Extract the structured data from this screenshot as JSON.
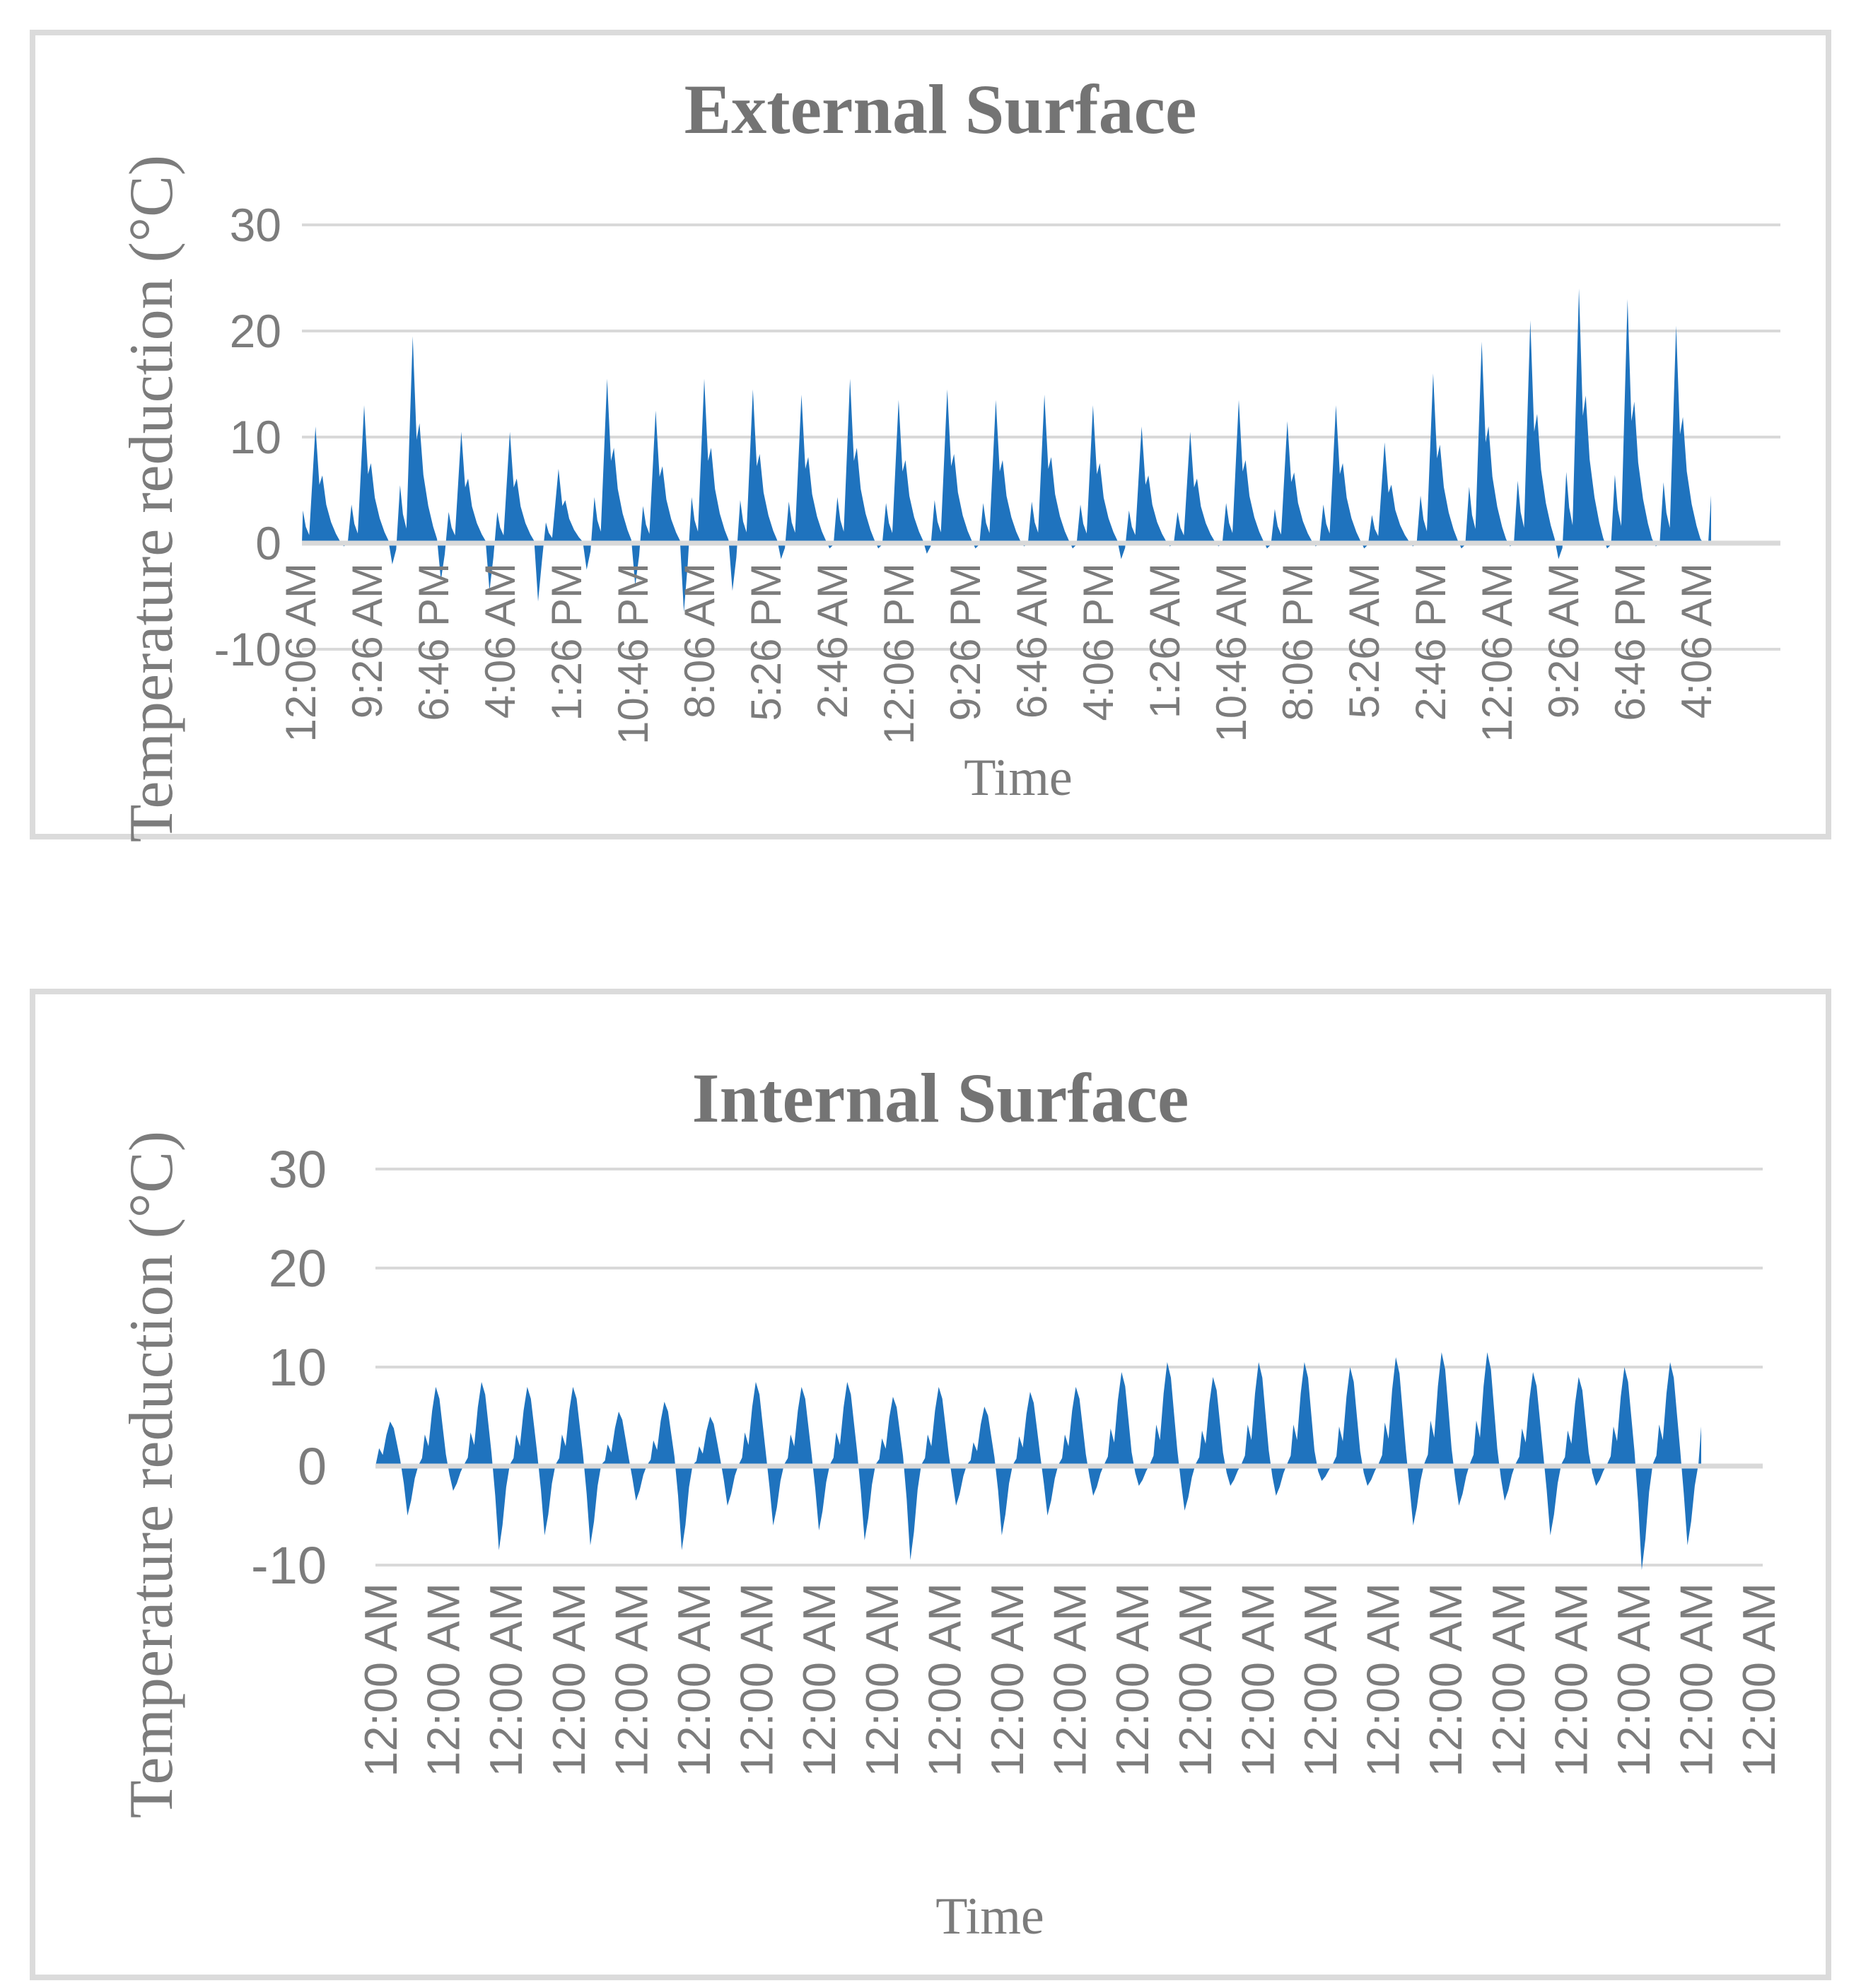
{
  "page": {
    "background": "#ffffff",
    "panel_border_color": "#dbdbdb"
  },
  "chart_data": [
    {
      "type": "area",
      "title": "External Surface",
      "ylabel": "Temperature reduction (°C)",
      "xlabel": "Time",
      "ylim": [
        -10,
        30
      ],
      "y_ticks": [
        30,
        20,
        10,
        0,
        -10
      ],
      "grid": true,
      "legend": "none",
      "series_color": "#1f73be",
      "gridline_color": "#d9d9d9",
      "text_color": "#7c7c7c",
      "title_color": "#747474",
      "x_tick_labels": [
        "12:06 AM",
        "9:26 AM",
        "6:46 PM",
        "4:06 AM",
        "1:26 PM",
        "10:46 PM",
        "8:06 AM",
        "5:26 PM",
        "2:46 AM",
        "12:06 PM",
        "9:26 PM",
        "6:46 AM",
        "4:06 PM",
        "1:26 AM",
        "10:46 AM",
        "8:06 PM",
        "5:26 AM",
        "2:46 PM",
        "12:06 AM",
        "9:26 AM",
        "6:46 PM",
        "4:06 AM"
      ],
      "days": 29,
      "day_peak_values": [
        11,
        13,
        19.5,
        10.5,
        10.5,
        7,
        15.5,
        12.5,
        15.5,
        14.5,
        14,
        15.5,
        13.5,
        14.5,
        13.5,
        14,
        13,
        11,
        10.5,
        13.5,
        11.5,
        13,
        9.5,
        16,
        19,
        21,
        24,
        23,
        20.5
      ],
      "day_dip_values": [
        -0.3,
        -2,
        -3.5,
        -4.5,
        -5.5,
        -2.5,
        -4,
        -6.5,
        -4.5,
        -1.5,
        -0.5,
        -0.5,
        -1,
        -0.5,
        -0.3,
        -0.5,
        -1.5,
        -0.3,
        -0.3,
        -0.5,
        -0.3,
        -0.5,
        -0.3,
        -0.5,
        -0.3,
        -1.5,
        -0.5,
        -0.3,
        -0.1
      ],
      "intraday_profile": {
        "t": [
          0.02,
          0.08,
          0.15,
          0.28,
          0.36,
          0.42,
          0.5,
          0.6,
          0.7,
          0.78,
          0.86,
          0.94
        ],
        "w": [
          0.28,
          0.14,
          0.07,
          1.0,
          0.5,
          0.58,
          0.33,
          0.18,
          0.08,
          0.02,
          -1.0,
          -0.3
        ]
      },
      "end_stub_value": 4.5
    },
    {
      "type": "area",
      "title": "Internal Surface",
      "ylabel": "Temperature reduction (°C)",
      "xlabel": "Time",
      "ylim": [
        -10,
        30
      ],
      "y_ticks": [
        30,
        20,
        10,
        0,
        -10
      ],
      "grid": true,
      "legend": "none",
      "series_color": "#1f73be",
      "gridline_color": "#d9d9d9",
      "text_color": "#7c7c7c",
      "title_color": "#747474",
      "x_tick_labels": [
        "12:00 AM",
        "12:00 AM",
        "12:00 AM",
        "12:00 AM",
        "12:00 AM",
        "12:00 AM",
        "12:00 AM",
        "12:00 AM",
        "12:00 AM",
        "12:00 AM",
        "12:00 AM",
        "12:00 AM",
        "12:00 AM",
        "12:00 AM",
        "12:00 AM",
        "12:00 AM",
        "12:00 AM",
        "12:00 AM",
        "12:00 AM",
        "12:00 AM",
        "12:00 AM",
        "12:00 AM",
        "12:00 AM"
      ],
      "days": 29,
      "day_peak_values": [
        4.5,
        8,
        8.5,
        8,
        8,
        5.5,
        6.5,
        5,
        8.5,
        8,
        8.5,
        7,
        8,
        6,
        7.5,
        8,
        9.5,
        10.5,
        9,
        10.5,
        10.5,
        10,
        11,
        11.5,
        11.5,
        9.5,
        9,
        10,
        10.5
      ],
      "day_dip_values": [
        -5,
        -2.5,
        -8.5,
        -7,
        -8,
        -3.5,
        -8.5,
        -4,
        -6,
        -6.5,
        -7.5,
        -9.5,
        -4,
        -7,
        -5,
        -3,
        -2,
        -4.5,
        -2,
        -3,
        -1.5,
        -2,
        -6,
        -4,
        -3.5,
        -7,
        -2,
        -10.5,
        -8
      ],
      "intraday_profile": {
        "t": [
          0.02,
          0.08,
          0.16,
          0.24,
          0.32,
          0.4,
          0.47,
          0.54,
          0.62,
          0.7,
          0.78,
          0.86,
          0.94
        ],
        "w": [
          0.1,
          0.4,
          0.25,
          0.7,
          1.0,
          0.85,
          0.5,
          0.15,
          -0.35,
          -1.0,
          -0.7,
          -0.25,
          0.02
        ]
      },
      "end_stub_value": 4
    }
  ]
}
